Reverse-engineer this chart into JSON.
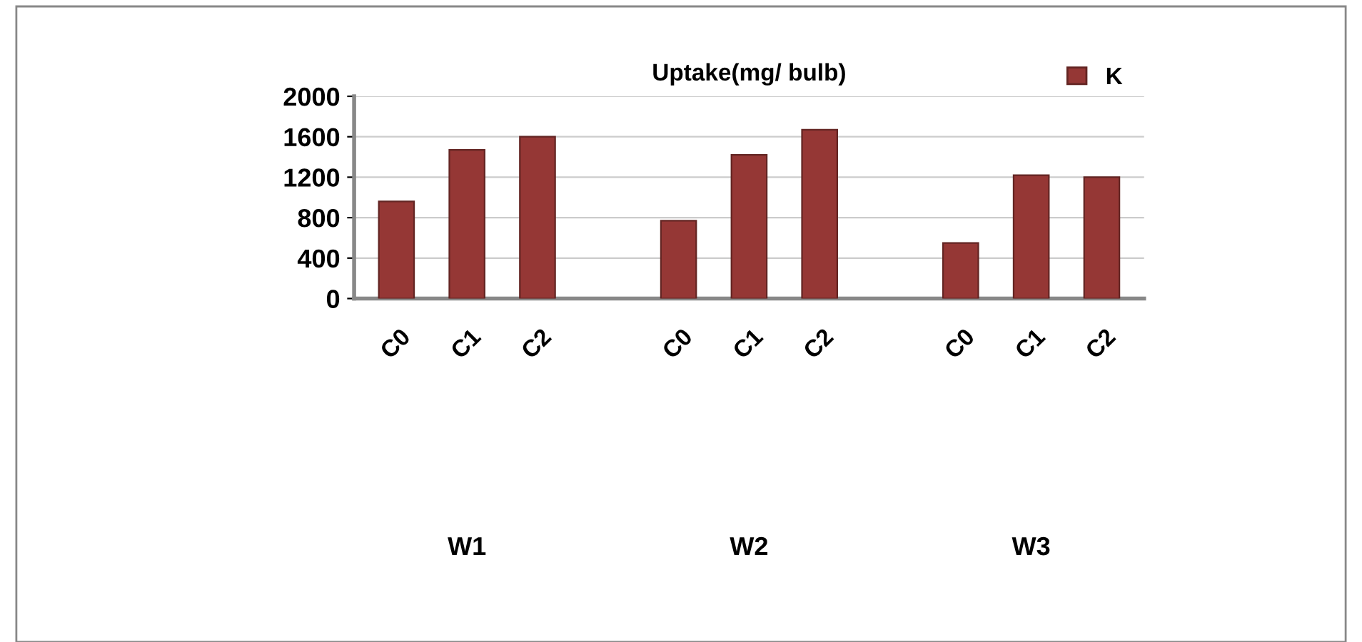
{
  "chart_data": {
    "type": "bar",
    "title": "Uptake(mg/ bulb)",
    "categories": [
      "C0",
      "C1",
      "C2",
      null,
      "C0",
      "C1",
      "C2",
      null,
      "C0",
      "C1",
      "C2"
    ],
    "series": [
      {
        "name": "K",
        "color": "#953735",
        "values": [
          960,
          1470,
          1600,
          null,
          770,
          1420,
          1670,
          null,
          550,
          1220,
          1200
        ]
      }
    ],
    "ylim": [
      0,
      2000
    ],
    "yticks": [
      0,
      400,
      800,
      1200,
      1600,
      2000
    ],
    "grid": "y",
    "legend": "top right",
    "annotations": [
      "W1",
      "W2",
      "W3"
    ]
  }
}
